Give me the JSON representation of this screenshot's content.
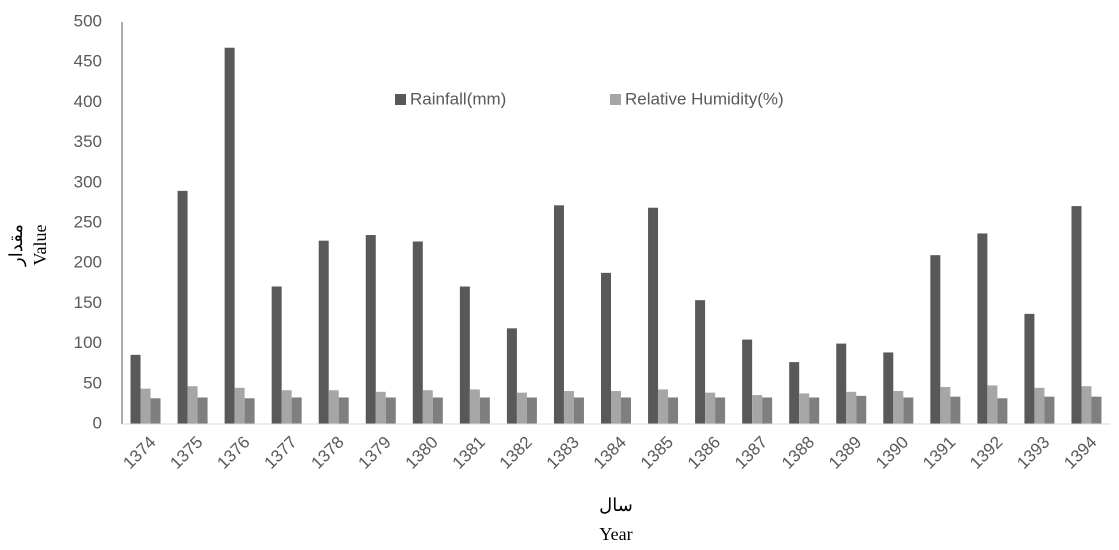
{
  "chart_data": {
    "type": "bar",
    "categories": [
      "1374",
      "1375",
      "1376",
      "1377",
      "1378",
      "1379",
      "1380",
      "1381",
      "1382",
      "1383",
      "1384",
      "1385",
      "1386",
      "1387",
      "1388",
      "1389",
      "1390",
      "1391",
      "1392",
      "1393",
      "1394"
    ],
    "series": [
      {
        "name": "Rainfall(mm)",
        "color": "#595959",
        "values": [
          86,
          290,
          468,
          171,
          228,
          235,
          227,
          171,
          119,
          272,
          188,
          269,
          154,
          105,
          77,
          100,
          89,
          210,
          237,
          137,
          271
        ]
      },
      {
        "name": "Relative Humidity(%)",
        "color": "#a6a6a6",
        "values": [
          44,
          47,
          45,
          42,
          42,
          40,
          42,
          43,
          39,
          41,
          41,
          43,
          39,
          36,
          38,
          40,
          41,
          46,
          48,
          45,
          47
        ]
      },
      {
        "color": "#7f7f7f",
        "values": [
          32,
          33,
          32,
          33,
          33,
          33,
          33,
          33,
          33,
          33,
          33,
          33,
          33,
          33,
          33,
          35,
          33,
          34,
          32,
          34,
          34
        ]
      }
    ],
    "ylabel": [
      "مقدار",
      "Value"
    ],
    "xlabel": [
      "سال",
      "Year"
    ],
    "ylim": [
      0,
      500
    ],
    "yticks": [
      0,
      50,
      100,
      150,
      200,
      250,
      300,
      350,
      400,
      450,
      500
    ],
    "grid": false
  }
}
